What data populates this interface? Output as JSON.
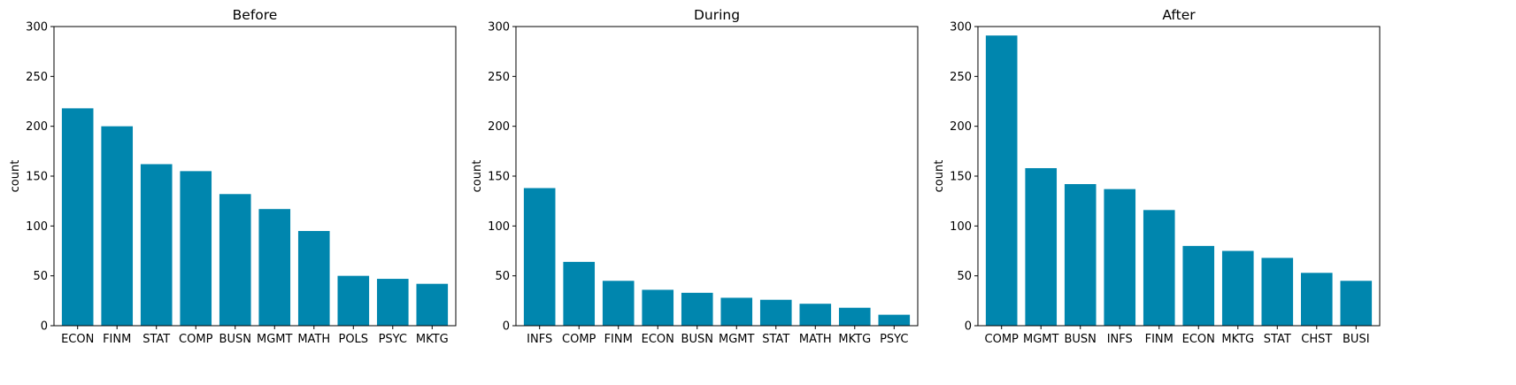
{
  "chart_data": [
    {
      "type": "bar",
      "title": "Before",
      "xlabel": "",
      "ylabel": "count",
      "ylim": [
        0,
        300
      ],
      "yticks": [
        0,
        50,
        100,
        150,
        200,
        250,
        300
      ],
      "categories": [
        "ECON",
        "FINM",
        "STAT",
        "COMP",
        "BUSN",
        "MGMT",
        "MATH",
        "POLS",
        "PSYC",
        "MKTG"
      ],
      "values": [
        218,
        200,
        162,
        155,
        132,
        117,
        95,
        50,
        47,
        42
      ],
      "color": "#0086AE",
      "grid": false
    },
    {
      "type": "bar",
      "title": "During",
      "xlabel": "",
      "ylabel": "count",
      "ylim": [
        0,
        300
      ],
      "yticks": [
        0,
        50,
        100,
        150,
        200,
        250,
        300
      ],
      "categories": [
        "INFS",
        "COMP",
        "FINM",
        "ECON",
        "BUSN",
        "MGMT",
        "STAT",
        "MATH",
        "MKTG",
        "PSYC"
      ],
      "values": [
        138,
        64,
        45,
        36,
        33,
        28,
        26,
        22,
        18,
        11
      ],
      "color": "#0086AE",
      "grid": false
    },
    {
      "type": "bar",
      "title": "After",
      "xlabel": "",
      "ylabel": "count",
      "ylim": [
        0,
        300
      ],
      "yticks": [
        0,
        50,
        100,
        150,
        200,
        250,
        300
      ],
      "categories": [
        "COMP",
        "MGMT",
        "BUSN",
        "INFS",
        "FINM",
        "ECON",
        "MKTG",
        "STAT",
        "CHST",
        "BUSI"
      ],
      "values": [
        291,
        158,
        142,
        137,
        116,
        80,
        75,
        68,
        53,
        45
      ],
      "color": "#0086AE",
      "grid": false
    }
  ]
}
